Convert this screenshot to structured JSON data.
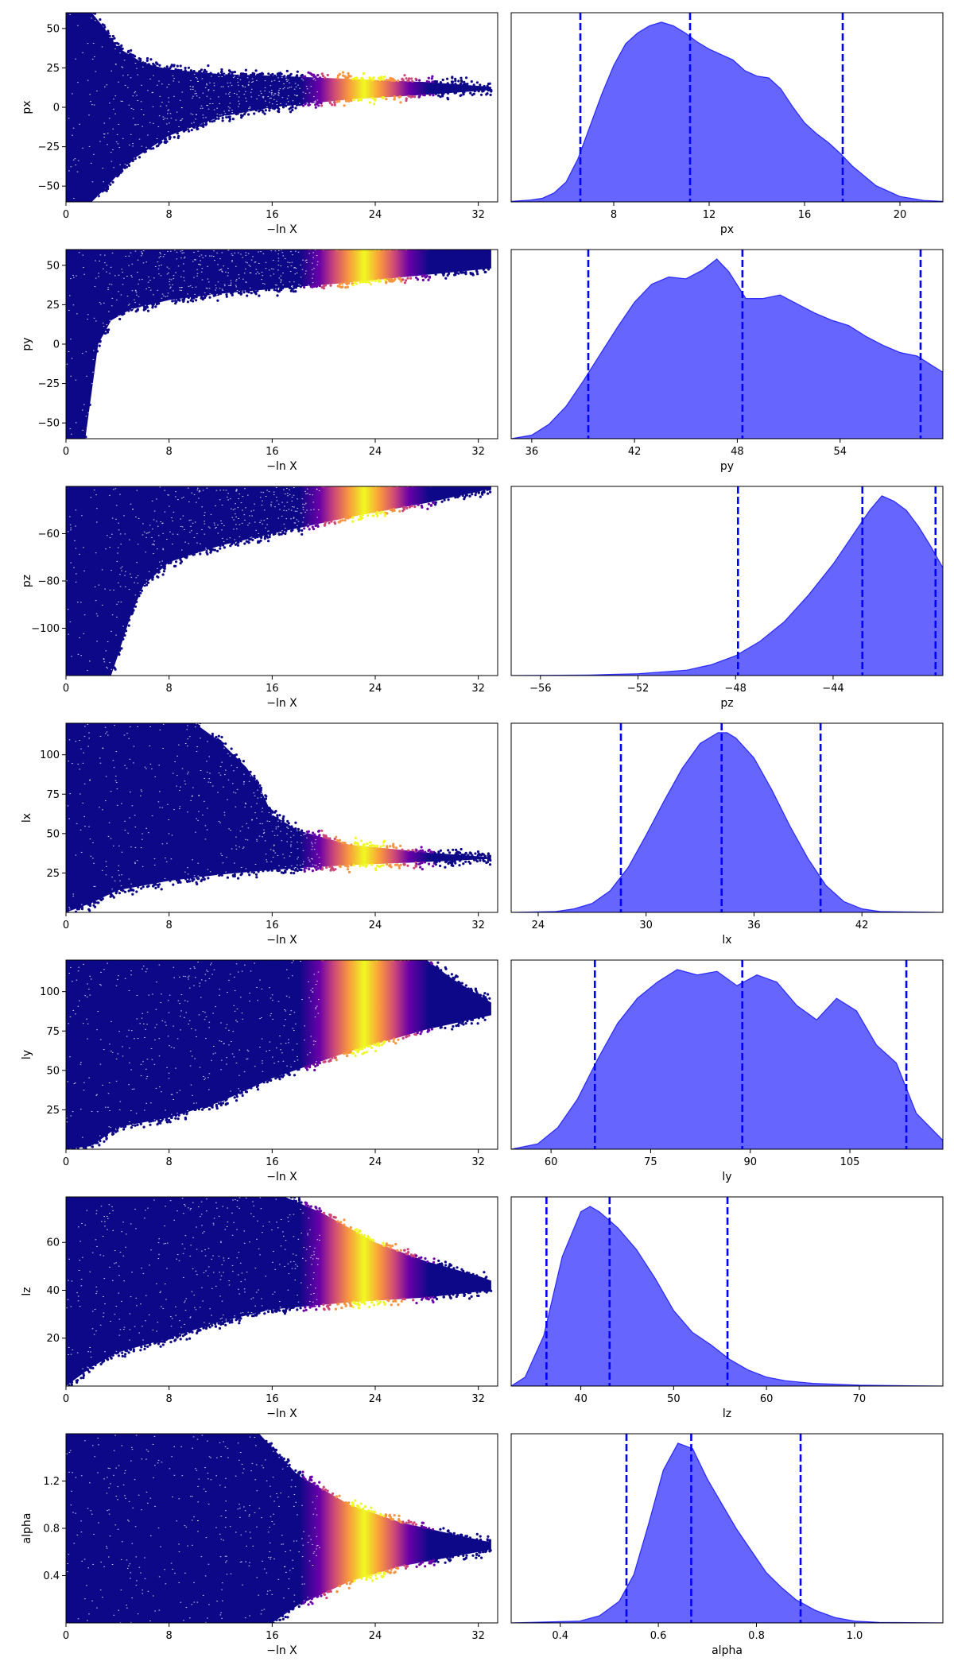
{
  "chart_data": [
    {
      "type": "scatter",
      "xlabel": "−ln X",
      "ylabel": "px",
      "xlim": [
        0,
        33.5
      ],
      "ylim": [
        -60,
        60
      ],
      "xticks": [
        "0",
        "8",
        "16",
        "24",
        "32"
      ],
      "xtick_values": [
        0,
        8,
        16,
        24,
        32
      ],
      "yticks": [
        "50",
        "25",
        "0",
        "−25",
        "−50"
      ],
      "ytick_values": [
        50,
        25,
        0,
        -25,
        -50
      ],
      "colormap": "plasma",
      "grid": false,
      "trace": {
        "upper": [
          [
            0,
            60
          ],
          [
            2,
            60
          ],
          [
            3,
            50
          ],
          [
            4,
            38
          ],
          [
            6,
            28
          ],
          [
            8,
            24
          ],
          [
            12,
            21
          ],
          [
            16,
            20
          ],
          [
            22,
            18
          ],
          [
            28,
            16
          ],
          [
            33,
            13
          ]
        ],
        "lower": [
          [
            0,
            -60
          ],
          [
            2,
            -60
          ],
          [
            3,
            -52
          ],
          [
            5,
            -34
          ],
          [
            8,
            -18
          ],
          [
            12,
            -6
          ],
          [
            16,
            0
          ],
          [
            22,
            5
          ],
          [
            28,
            8
          ],
          [
            33,
            11
          ]
        ],
        "peak_x": 23.5,
        "peak_width": 3.2
      }
    },
    {
      "type": "area",
      "xlabel": "px",
      "ylabel": "",
      "xlim": [
        3.7,
        21.8
      ],
      "xticks": [
        "8",
        "12",
        "16",
        "20"
      ],
      "xtick_values": [
        8,
        12,
        16,
        20
      ],
      "fill_color": "#0000ff",
      "fill_opacity": 0.6,
      "quantile_lines": [
        6.6,
        11.2,
        17.6
      ],
      "quantile_color": "#0000ff",
      "x": [
        3.7,
        4.5,
        5,
        5.5,
        6,
        6.5,
        7,
        7.5,
        8,
        8.5,
        9,
        9.5,
        10,
        10.5,
        11,
        11.5,
        12,
        12.5,
        13,
        13.5,
        14,
        14.5,
        15,
        15.5,
        16,
        16.5,
        17,
        17.5,
        18,
        19,
        20,
        21,
        21.8
      ],
      "values": [
        0.003,
        0.01,
        0.02,
        0.05,
        0.11,
        0.24,
        0.42,
        0.6,
        0.76,
        0.88,
        0.94,
        0.98,
        1.0,
        0.98,
        0.94,
        0.89,
        0.85,
        0.82,
        0.79,
        0.73,
        0.7,
        0.69,
        0.63,
        0.53,
        0.44,
        0.38,
        0.33,
        0.27,
        0.2,
        0.09,
        0.03,
        0.008,
        0.003
      ]
    },
    {
      "type": "scatter",
      "xlabel": "−ln X",
      "ylabel": "py",
      "xlim": [
        0,
        33.5
      ],
      "ylim": [
        -60,
        60
      ],
      "xticks": [
        "0",
        "8",
        "16",
        "24",
        "32"
      ],
      "xtick_values": [
        0,
        8,
        16,
        24,
        32
      ],
      "yticks": [
        "50",
        "25",
        "0",
        "−25",
        "−50"
      ],
      "ytick_values": [
        50,
        25,
        0,
        -25,
        -50
      ],
      "colormap": "plasma",
      "grid": false,
      "trace": {
        "upper": [
          [
            0,
            60
          ],
          [
            33,
            60
          ]
        ],
        "lower": [
          [
            0,
            -60
          ],
          [
            1.5,
            -60
          ],
          [
            2,
            -30
          ],
          [
            2.5,
            0
          ],
          [
            3.5,
            15
          ],
          [
            5,
            22
          ],
          [
            8,
            28
          ],
          [
            12,
            32
          ],
          [
            16,
            35
          ],
          [
            22,
            39
          ],
          [
            28,
            44
          ],
          [
            33,
            48
          ]
        ],
        "peak_x": 23.5,
        "peak_width": 3.2
      }
    },
    {
      "type": "area",
      "xlabel": "py",
      "ylabel": "",
      "xlim": [
        34.8,
        60
      ],
      "xticks": [
        "36",
        "42",
        "48",
        "54"
      ],
      "xtick_values": [
        36,
        42,
        48,
        54
      ],
      "fill_color": "#0000ff",
      "fill_opacity": 0.6,
      "quantile_lines": [
        39.3,
        48.3,
        58.7
      ],
      "quantile_color": "#0000ff",
      "x": [
        34.8,
        36,
        37,
        38,
        39,
        40,
        41,
        42,
        43,
        44,
        45,
        46,
        46.8,
        47.5,
        48.5,
        49.5,
        50.5,
        51.5,
        52.5,
        53.5,
        54.5,
        55.5,
        56.5,
        57.5,
        58.5,
        59.5,
        60
      ],
      "values": [
        0.0,
        0.02,
        0.08,
        0.18,
        0.32,
        0.47,
        0.62,
        0.76,
        0.86,
        0.9,
        0.89,
        0.94,
        1.0,
        0.93,
        0.78,
        0.78,
        0.8,
        0.75,
        0.7,
        0.66,
        0.63,
        0.57,
        0.52,
        0.48,
        0.46,
        0.4,
        0.37
      ]
    },
    {
      "type": "scatter",
      "xlabel": "−ln X",
      "ylabel": "pz",
      "xlim": [
        0,
        33.5
      ],
      "ylim": [
        -120,
        -40
      ],
      "xticks": [
        "0",
        "8",
        "16",
        "24",
        "32"
      ],
      "xtick_values": [
        0,
        8,
        16,
        24,
        32
      ],
      "yticks": [
        "−60",
        "−80",
        "−100"
      ],
      "ytick_values": [
        -60,
        -80,
        -100
      ],
      "colormap": "plasma",
      "grid": false,
      "trace": {
        "upper": [
          [
            0,
            -40
          ],
          [
            33,
            -40
          ]
        ],
        "lower": [
          [
            0,
            -120
          ],
          [
            3.5,
            -120
          ],
          [
            4,
            -112
          ],
          [
            5,
            -95
          ],
          [
            6,
            -82
          ],
          [
            8,
            -72
          ],
          [
            12,
            -65
          ],
          [
            16,
            -60
          ],
          [
            22,
            -53
          ],
          [
            28,
            -47
          ],
          [
            33,
            -41
          ]
        ],
        "peak_x": 23.5,
        "peak_width": 3.2
      }
    },
    {
      "type": "area",
      "xlabel": "pz",
      "ylabel": "",
      "xlim": [
        -57.2,
        -39.5
      ],
      "xticks": [
        "−56",
        "−52",
        "−48",
        "−44"
      ],
      "xtick_values": [
        -56,
        -52,
        -48,
        -44
      ],
      "fill_color": "#0000ff",
      "fill_opacity": 0.6,
      "quantile_lines": [
        -47.9,
        -42.8,
        -39.8
      ],
      "quantile_color": "#0000ff",
      "x": [
        -57.2,
        -54,
        -52,
        -50,
        -49,
        -48,
        -47,
        -46,
        -45,
        -44,
        -43.5,
        -43,
        -42.5,
        -42,
        -41.5,
        -41,
        -40.5,
        -40,
        -39.5
      ],
      "values": [
        0.0,
        0.003,
        0.01,
        0.03,
        0.06,
        0.11,
        0.19,
        0.3,
        0.45,
        0.62,
        0.72,
        0.82,
        0.92,
        1.0,
        0.97,
        0.92,
        0.83,
        0.72,
        0.6
      ]
    },
    {
      "type": "scatter",
      "xlabel": "−ln X",
      "ylabel": "lx",
      "xlim": [
        0,
        33.5
      ],
      "ylim": [
        0,
        120
      ],
      "xticks": [
        "0",
        "8",
        "16",
        "24",
        "32"
      ],
      "xtick_values": [
        0,
        8,
        16,
        24,
        32
      ],
      "yticks": [
        "100",
        "75",
        "50",
        "25"
      ],
      "ytick_values": [
        100,
        75,
        50,
        25
      ],
      "colormap": "plasma",
      "grid": false,
      "trace": {
        "upper": [
          [
            0,
            120
          ],
          [
            10,
            120
          ],
          [
            12,
            108
          ],
          [
            14,
            92
          ],
          [
            15,
            80
          ],
          [
            16,
            62
          ],
          [
            18,
            52
          ],
          [
            22,
            43
          ],
          [
            28,
            38
          ],
          [
            33,
            35
          ]
        ],
        "lower": [
          [
            0,
            0
          ],
          [
            2,
            6
          ],
          [
            4,
            14
          ],
          [
            8,
            20
          ],
          [
            12,
            24
          ],
          [
            16,
            27
          ],
          [
            22,
            30
          ],
          [
            28,
            32
          ],
          [
            33,
            34
          ]
        ],
        "peak_x": 23.5,
        "peak_width": 3.2
      }
    },
    {
      "type": "area",
      "xlabel": "lx",
      "ylabel": "",
      "xlim": [
        22.5,
        46.5
      ],
      "xticks": [
        "24",
        "30",
        "36",
        "42"
      ],
      "xtick_values": [
        24,
        30,
        36,
        42
      ],
      "fill_color": "#0000ff",
      "fill_opacity": 0.6,
      "quantile_lines": [
        28.6,
        34.2,
        39.7
      ],
      "quantile_color": "#0000ff",
      "x": [
        22.5,
        25,
        26,
        27,
        28,
        29,
        30,
        31,
        32,
        33,
        34,
        34.5,
        35,
        36,
        37,
        38,
        39,
        40,
        41,
        42,
        43,
        46.5
      ],
      "values": [
        0.0,
        0.005,
        0.02,
        0.05,
        0.12,
        0.25,
        0.43,
        0.62,
        0.8,
        0.94,
        1.0,
        1.0,
        0.97,
        0.86,
        0.68,
        0.48,
        0.3,
        0.15,
        0.06,
        0.02,
        0.005,
        0.0
      ]
    },
    {
      "type": "scatter",
      "xlabel": "−ln X",
      "ylabel": "ly",
      "xlim": [
        0,
        33.5
      ],
      "ylim": [
        0,
        120
      ],
      "xticks": [
        "0",
        "8",
        "16",
        "24",
        "32"
      ],
      "xtick_values": [
        0,
        8,
        16,
        24,
        32
      ],
      "yticks": [
        "100",
        "75",
        "50",
        "25"
      ],
      "ytick_values": [
        100,
        75,
        50,
        25
      ],
      "colormap": "plasma",
      "grid": false,
      "trace": {
        "upper": [
          [
            0,
            120
          ],
          [
            28,
            120
          ],
          [
            30,
            108
          ],
          [
            32,
            98
          ],
          [
            33,
            93
          ]
        ],
        "lower": [
          [
            0,
            0
          ],
          [
            2,
            2
          ],
          [
            4,
            14
          ],
          [
            8,
            20
          ],
          [
            12,
            30
          ],
          [
            16,
            45
          ],
          [
            22,
            62
          ],
          [
            28,
            76
          ],
          [
            33,
            85
          ]
        ],
        "peak_x": 23.5,
        "peak_width": 3.2
      }
    },
    {
      "type": "area",
      "xlabel": "ly",
      "ylabel": "",
      "xlim": [
        54,
        119
      ],
      "xticks": [
        "60",
        "75",
        "90",
        "105"
      ],
      "xtick_values": [
        60,
        75,
        90,
        105
      ],
      "fill_color": "#0000ff",
      "fill_opacity": 0.6,
      "quantile_lines": [
        66.6,
        88.8,
        113.5
      ],
      "quantile_color": "#0000ff",
      "x": [
        54,
        58,
        61,
        64,
        67,
        70,
        73,
        76,
        79,
        82,
        85,
        88,
        91,
        94,
        97,
        100,
        103,
        106,
        109,
        112,
        115,
        119
      ],
      "values": [
        0.0,
        0.03,
        0.12,
        0.28,
        0.5,
        0.7,
        0.84,
        0.93,
        1.0,
        0.97,
        0.99,
        0.91,
        0.97,
        0.93,
        0.8,
        0.72,
        0.84,
        0.77,
        0.58,
        0.48,
        0.2,
        0.05
      ]
    },
    {
      "type": "scatter",
      "xlabel": "−ln X",
      "ylabel": "lz",
      "xlim": [
        0,
        33.5
      ],
      "ylim": [
        0,
        79
      ],
      "xticks": [
        "0",
        "8",
        "16",
        "24",
        "32"
      ],
      "xtick_values": [
        0,
        8,
        16,
        24,
        32
      ],
      "yticks": [
        "60",
        "40",
        "20"
      ],
      "ytick_values": [
        60,
        40,
        20
      ],
      "colormap": "plasma",
      "grid": false,
      "trace": {
        "upper": [
          [
            0,
            79
          ],
          [
            17,
            79
          ],
          [
            20,
            72
          ],
          [
            24,
            60
          ],
          [
            28,
            52
          ],
          [
            32,
            46
          ],
          [
            33,
            44
          ]
        ],
        "lower": [
          [
            0,
            0
          ],
          [
            2,
            8
          ],
          [
            4,
            14
          ],
          [
            8,
            20
          ],
          [
            12,
            27
          ],
          [
            16,
            32
          ],
          [
            22,
            35
          ],
          [
            28,
            37
          ],
          [
            33,
            40
          ]
        ],
        "peak_x": 23.5,
        "peak_width": 3.2
      }
    },
    {
      "type": "area",
      "xlabel": "lz",
      "ylabel": "",
      "xlim": [
        32.5,
        79
      ],
      "xticks": [
        "40",
        "50",
        "60",
        "70"
      ],
      "xtick_values": [
        40,
        50,
        60,
        70
      ],
      "fill_color": "#0000ff",
      "fill_opacity": 0.6,
      "quantile_lines": [
        36.3,
        43.1,
        55.8
      ],
      "quantile_color": "#0000ff",
      "x": [
        32.5,
        34,
        36,
        38,
        40,
        41,
        42,
        44,
        46,
        48,
        50,
        52,
        54,
        56,
        58,
        60,
        62,
        65,
        70,
        79
      ],
      "values": [
        0.0,
        0.05,
        0.28,
        0.72,
        0.97,
        1.0,
        0.97,
        0.88,
        0.76,
        0.6,
        0.42,
        0.3,
        0.23,
        0.15,
        0.09,
        0.05,
        0.03,
        0.015,
        0.005,
        0.0
      ]
    },
    {
      "type": "scatter",
      "xlabel": "−ln X",
      "ylabel": "alpha",
      "xlim": [
        0,
        33.5
      ],
      "ylim": [
        0,
        1.6
      ],
      "xticks": [
        "0",
        "8",
        "16",
        "24",
        "32"
      ],
      "xtick_values": [
        0,
        8,
        16,
        24,
        32
      ],
      "yticks": [
        "1.2",
        "0.8",
        "0.4"
      ],
      "ytick_values": [
        1.2,
        0.8,
        0.4
      ],
      "colormap": "plasma",
      "grid": false,
      "trace": {
        "upper": [
          [
            0,
            1.6
          ],
          [
            15,
            1.6
          ],
          [
            18,
            1.25
          ],
          [
            22,
            1.0
          ],
          [
            26,
            0.85
          ],
          [
            30,
            0.75
          ],
          [
            33,
            0.68
          ]
        ],
        "lower": [
          [
            0,
            0
          ],
          [
            16,
            0
          ],
          [
            18,
            0.15
          ],
          [
            22,
            0.35
          ],
          [
            26,
            0.48
          ],
          [
            30,
            0.56
          ],
          [
            33,
            0.62
          ]
        ],
        "peak_x": 23.5,
        "peak_width": 3.2
      }
    },
    {
      "type": "area",
      "xlabel": "alpha",
      "ylabel": "",
      "xlim": [
        0.3,
        1.18
      ],
      "xticks": [
        "0.4",
        "0.6",
        "0.8",
        "1.0"
      ],
      "xtick_values": [
        0.4,
        0.6,
        0.8,
        1.0
      ],
      "fill_color": "#0000ff",
      "fill_opacity": 0.6,
      "quantile_lines": [
        0.535,
        0.667,
        0.89
      ],
      "quantile_color": "#0000ff",
      "x": [
        0.3,
        0.44,
        0.48,
        0.52,
        0.55,
        0.58,
        0.61,
        0.64,
        0.67,
        0.7,
        0.73,
        0.76,
        0.79,
        0.82,
        0.85,
        0.88,
        0.92,
        0.96,
        1.0,
        1.05,
        1.18
      ],
      "values": [
        0.0,
        0.01,
        0.04,
        0.12,
        0.27,
        0.55,
        0.85,
        1.0,
        0.97,
        0.8,
        0.66,
        0.52,
        0.4,
        0.28,
        0.2,
        0.13,
        0.07,
        0.03,
        0.01,
        0.003,
        0.0
      ]
    }
  ]
}
